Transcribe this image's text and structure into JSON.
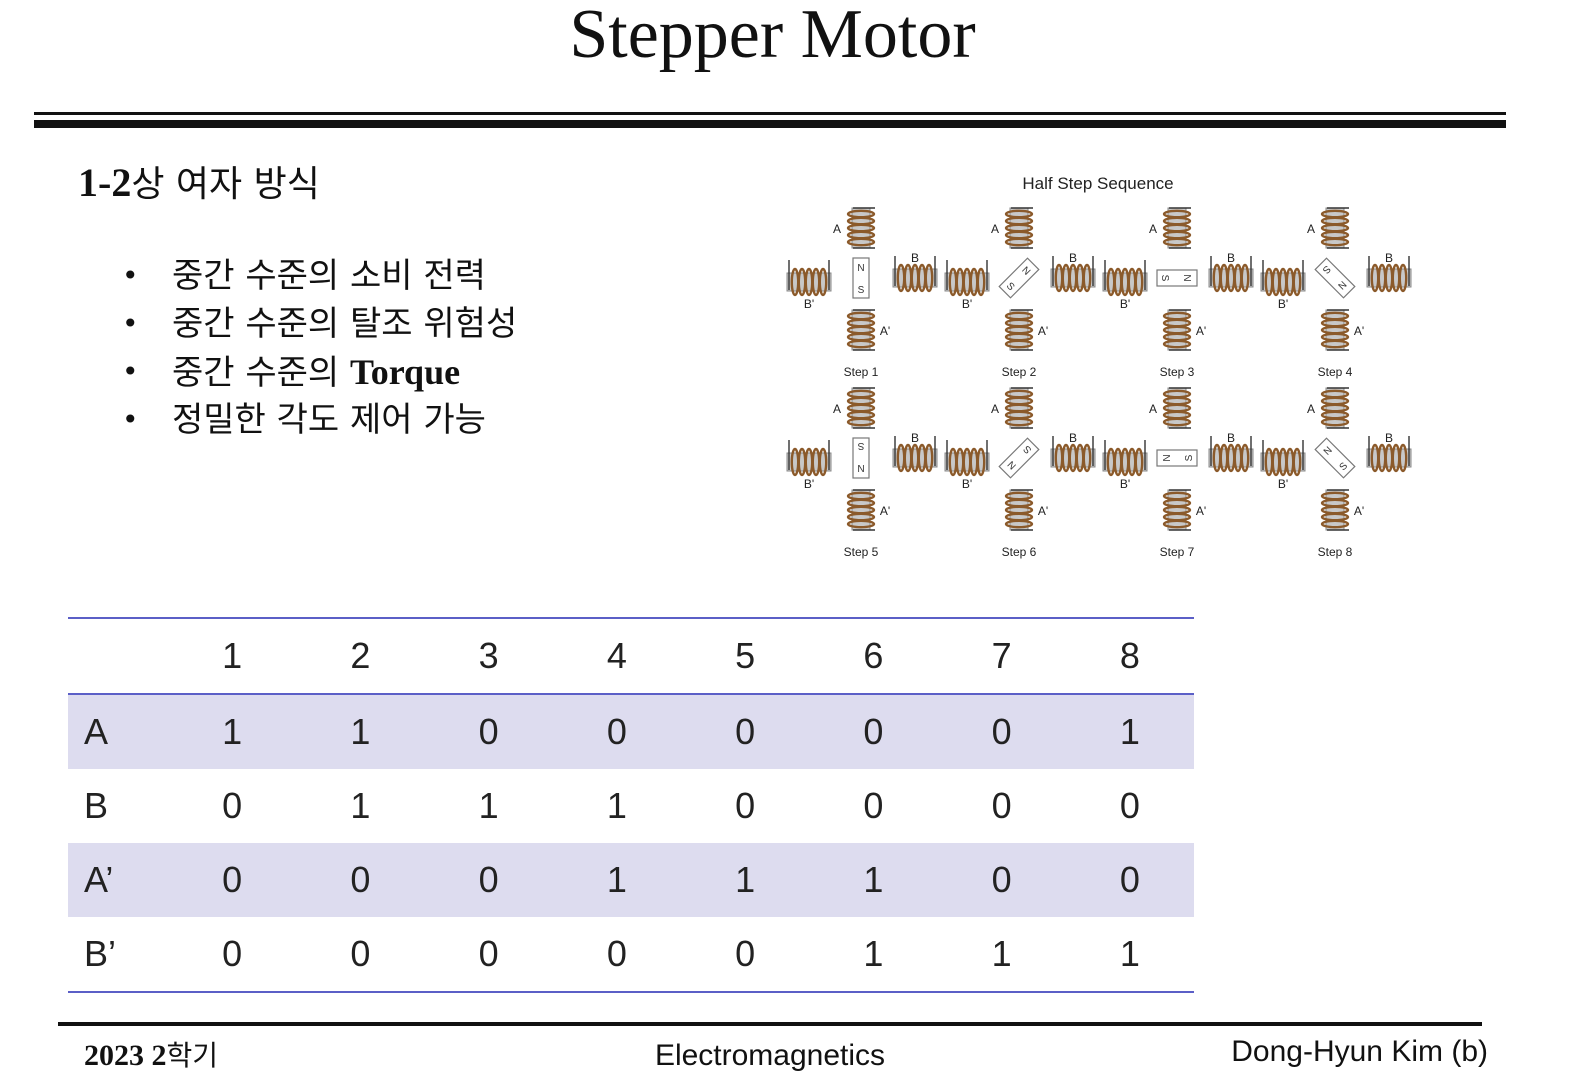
{
  "slide": {
    "title": "Stepper Motor",
    "subheading_prefix": "1-2",
    "subheading_korean": "상 여자 방식",
    "bullets": [
      {
        "text": "중간 수준의 소비 전력",
        "en": ""
      },
      {
        "text": "중간 수준의 탈조 위험성",
        "en": ""
      },
      {
        "text": "중간 수준의 ",
        "en": "Torque"
      },
      {
        "text": "정밀한 각도 제어 가능",
        "en": ""
      }
    ],
    "bullet_symbol": "•"
  },
  "figure": {
    "title": "Half Step Sequence",
    "coil_labels": {
      "a": "A",
      "a_prime": "A'",
      "b": "B",
      "b_prime": "B'"
    },
    "rotor_poles": {
      "n": "N",
      "s": "S"
    },
    "steps": [
      {
        "label": "Step 1",
        "rotor_angle": 90
      },
      {
        "label": "Step 2",
        "rotor_angle": 45
      },
      {
        "label": "Step 3",
        "rotor_angle": 0
      },
      {
        "label": "Step 4",
        "rotor_angle": -45
      },
      {
        "label": "Step 5",
        "rotor_angle": -90
      },
      {
        "label": "Step 6",
        "rotor_angle": -135
      },
      {
        "label": "Step 7",
        "rotor_angle": 180
      },
      {
        "label": "Step 8",
        "rotor_angle": 135
      }
    ],
    "colors": {
      "coil": "#8b5a2b",
      "core": "#c8c8c8",
      "wire": "#333333"
    }
  },
  "table": {
    "columns": [
      "1",
      "2",
      "3",
      "4",
      "5",
      "6",
      "7",
      "8"
    ],
    "rows": [
      {
        "label": "A",
        "values": [
          "1",
          "1",
          "0",
          "0",
          "0",
          "0",
          "0",
          "1"
        ]
      },
      {
        "label": "B",
        "values": [
          "0",
          "1",
          "1",
          "1",
          "0",
          "0",
          "0",
          "0"
        ]
      },
      {
        "label": "A’",
        "values": [
          "0",
          "0",
          "0",
          "1",
          "1",
          "1",
          "0",
          "0"
        ]
      },
      {
        "label": "B’",
        "values": [
          "0",
          "0",
          "0",
          "0",
          "0",
          "1",
          "1",
          "1"
        ]
      }
    ],
    "band_color": "#dddcef",
    "rule_color": "#5b5fc7"
  },
  "footer": {
    "year": "2023 2",
    "semester_korean": "학기",
    "course": "Electromagnetics",
    "author": "Dong-Hyun Kim (b)"
  }
}
